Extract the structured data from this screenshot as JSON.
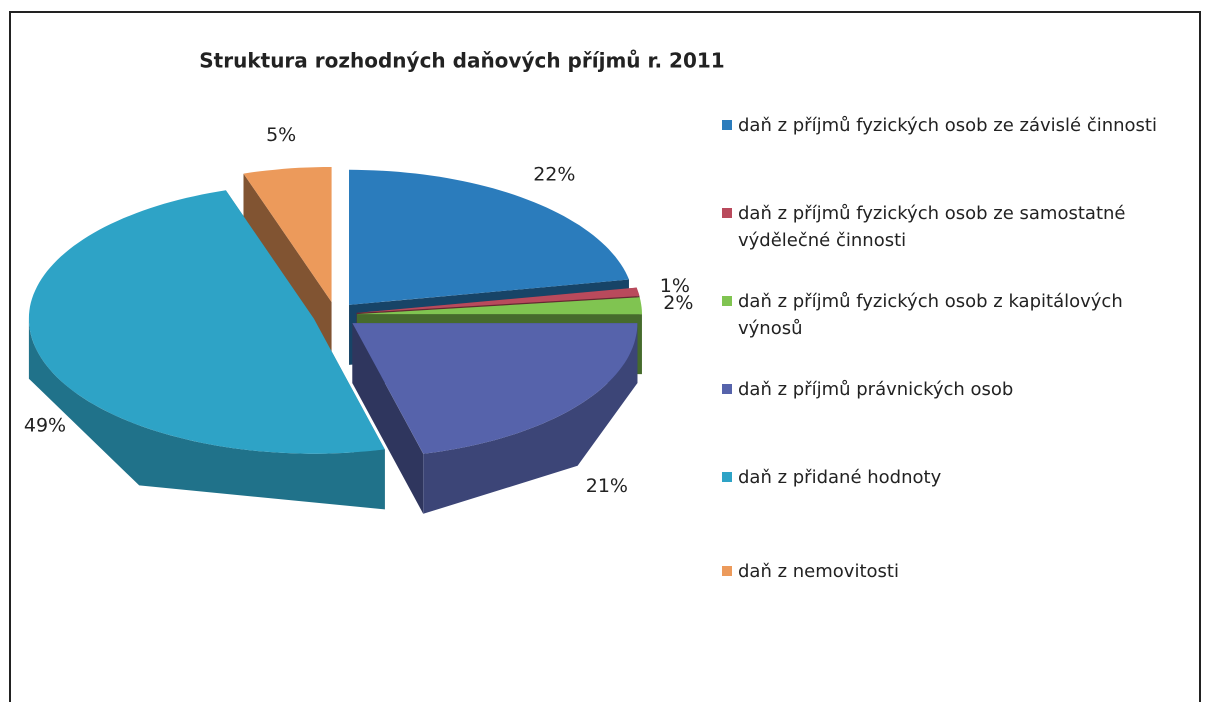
{
  "chart_data": {
    "type": "pie",
    "title": "Struktura rozhodných daňových příjmů r. 2011",
    "categories": [
      "daň z příjmů fyzických osob ze závislé činnosti",
      "daň z příjmů fyzických osob ze samostatné výdělečné činnosti",
      "daň z příjmů fyzických osob z kapitálových výnosů",
      "daň z příjmů právnických osob",
      "daň z přidané hodnoty",
      "daň z nemovitosti"
    ],
    "values": [
      22,
      1,
      2,
      21,
      49,
      5
    ],
    "value_labels": [
      "22%",
      "1%",
      "2%",
      "21%",
      "49%",
      "5%"
    ],
    "colors": [
      "#2b7cbc",
      "#b94a5c",
      "#80c451",
      "#5663ab",
      "#2ea3c6",
      "#ec9a5b"
    ],
    "legend": "right"
  }
}
